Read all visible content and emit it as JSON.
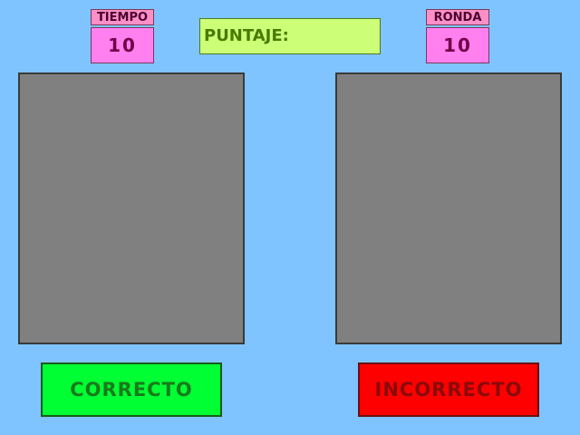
{
  "timer": {
    "label": "TIEMPO",
    "value": "10"
  },
  "round": {
    "label": "RONDA",
    "value": "10"
  },
  "score": {
    "label": "PUNTAJE:"
  },
  "buttons": {
    "correct_label": "CORRECTO",
    "incorrect_label": "INCORRECTO"
  },
  "colors": {
    "background": "#80c4ff",
    "card": "#808080",
    "correct": "#00ff33",
    "incorrect": "#ff0000",
    "score_panel": "#ccff77",
    "counter_label": "#ff8fc7",
    "counter_value": "#ff80ee"
  }
}
